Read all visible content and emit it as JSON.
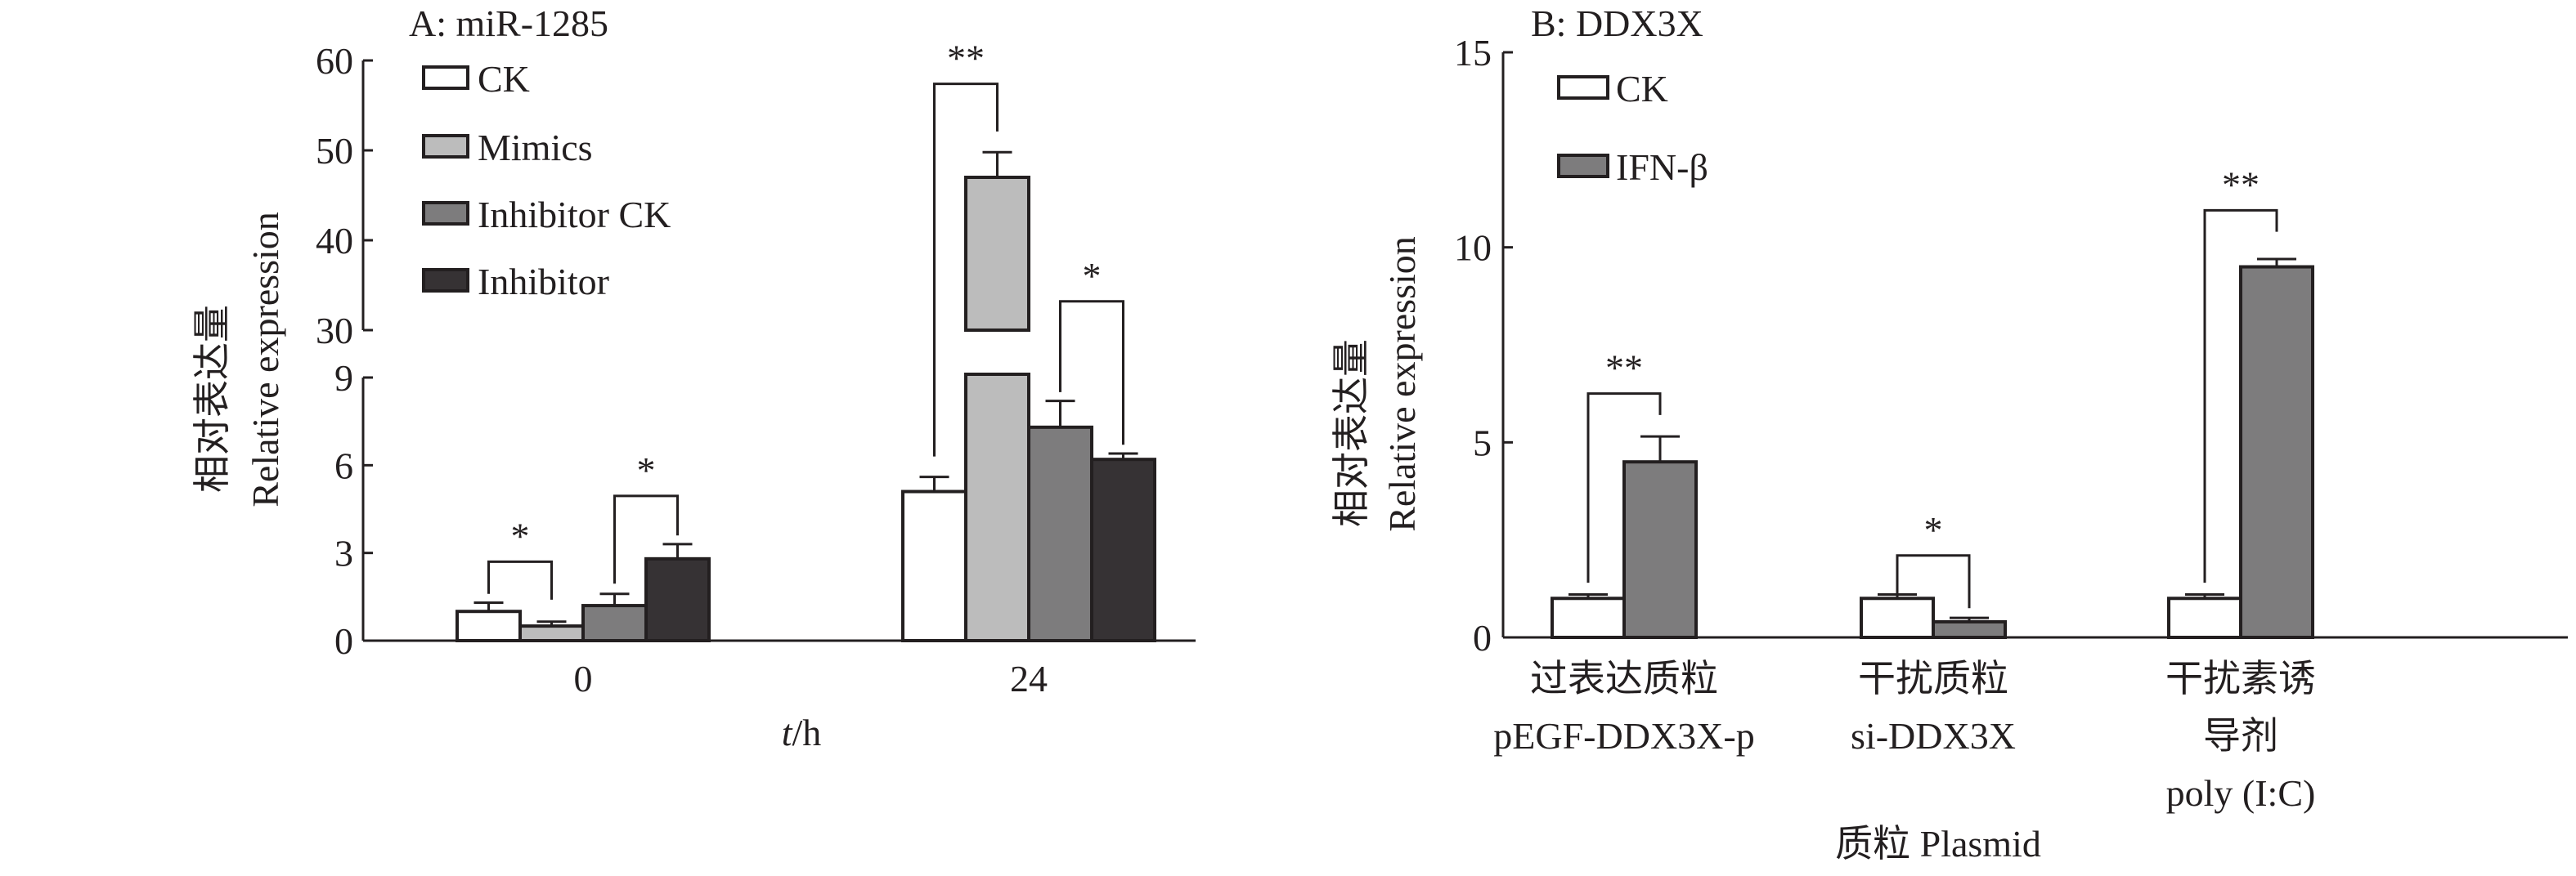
{
  "colors": {
    "CK": "#ffffff",
    "Mimics": "#bcbcbc",
    "Inhibitor CK": "#7d7c7d",
    "Inhibitor": "#363234",
    "IFN-β": "#7d7c7d",
    "stroke": "#231f20"
  },
  "chart_data": [
    {
      "type": "bar",
      "title": "A: miR-1285",
      "ylabel_cn": "相对表达量",
      "ylabel": "Relative expression",
      "xlabel_italic": "t",
      "xlabel_rest": "/h",
      "categories": [
        "0",
        "24"
      ],
      "axis_break": {
        "lower": [
          0,
          9
        ],
        "upper": [
          30,
          60
        ]
      },
      "yticks_lower": [
        "0",
        "3",
        "6",
        "9"
      ],
      "yticks_upper": [
        "30",
        "40",
        "50",
        "60"
      ],
      "legend": [
        "CK",
        "Mimics",
        "Inhibitor CK",
        "Inhibitor"
      ],
      "legend_placement": "top-left",
      "series": [
        {
          "name": "CK",
          "values": [
            1.0,
            5.1
          ],
          "errors": [
            0.3,
            0.5
          ]
        },
        {
          "name": "Mimics",
          "values": [
            0.5,
            47.0
          ],
          "errors": [
            0.15,
            2.8
          ]
        },
        {
          "name": "Inhibitor CK",
          "values": [
            1.2,
            7.3
          ],
          "errors": [
            0.4,
            0.9
          ]
        },
        {
          "name": "Inhibitor",
          "values": [
            2.8,
            6.2
          ],
          "errors": [
            0.5,
            0.2
          ]
        }
      ],
      "significance": [
        {
          "group": 0,
          "from": 0,
          "to": 1,
          "level": 2.7,
          "legs": [
            1.6,
            1.4
          ],
          "label": "*"
        },
        {
          "group": 0,
          "from": 2,
          "to": 3,
          "level": 4.95,
          "legs": [
            1.95,
            3.6
          ],
          "label": "*"
        },
        {
          "group": 1,
          "from": 0,
          "to": 1,
          "level": 57.4,
          "legs": [
            6.3,
            52.1
          ],
          "label": "**"
        },
        {
          "group": 1,
          "from": 2,
          "to": 3,
          "level": 33.2,
          "legs": [
            8.5,
            6.7
          ],
          "label": "*"
        }
      ]
    },
    {
      "type": "bar",
      "title": "B: DDX3X",
      "ylabel_cn": "相对表达量",
      "ylabel": "Relative expression",
      "xlabel": "质粒 Plasmid",
      "ylim": [
        0,
        15
      ],
      "yticks": [
        "0",
        "5",
        "10",
        "15"
      ],
      "categories": [
        [
          "过表达质粒",
          "pEGF-DDX3X-p"
        ],
        [
          "干扰质粒",
          "si-DDX3X"
        ],
        [
          "干扰素诱",
          "导剂",
          "poly (I:C)"
        ]
      ],
      "legend": [
        "CK",
        "IFN-β"
      ],
      "legend_placement": "top-left",
      "series": [
        {
          "name": "CK",
          "values": [
            1.0,
            1.0,
            1.0
          ],
          "errors": [
            0.1,
            0.1,
            0.1
          ]
        },
        {
          "name": "IFN-β",
          "values": [
            4.5,
            0.4,
            9.5
          ],
          "errors": [
            0.65,
            0.1,
            0.2
          ]
        }
      ],
      "significance": [
        {
          "group": 0,
          "from": 0,
          "to": 1,
          "level": 6.25,
          "legs": [
            1.4,
            5.7
          ],
          "label": "**"
        },
        {
          "group": 1,
          "from": 0,
          "to": 1,
          "level": 2.1,
          "legs": [
            1.05,
            0.75
          ],
          "label": "*"
        },
        {
          "group": 2,
          "from": 0,
          "to": 1,
          "level": 10.95,
          "legs": [
            1.4,
            10.4
          ],
          "label": "**"
        }
      ]
    }
  ]
}
